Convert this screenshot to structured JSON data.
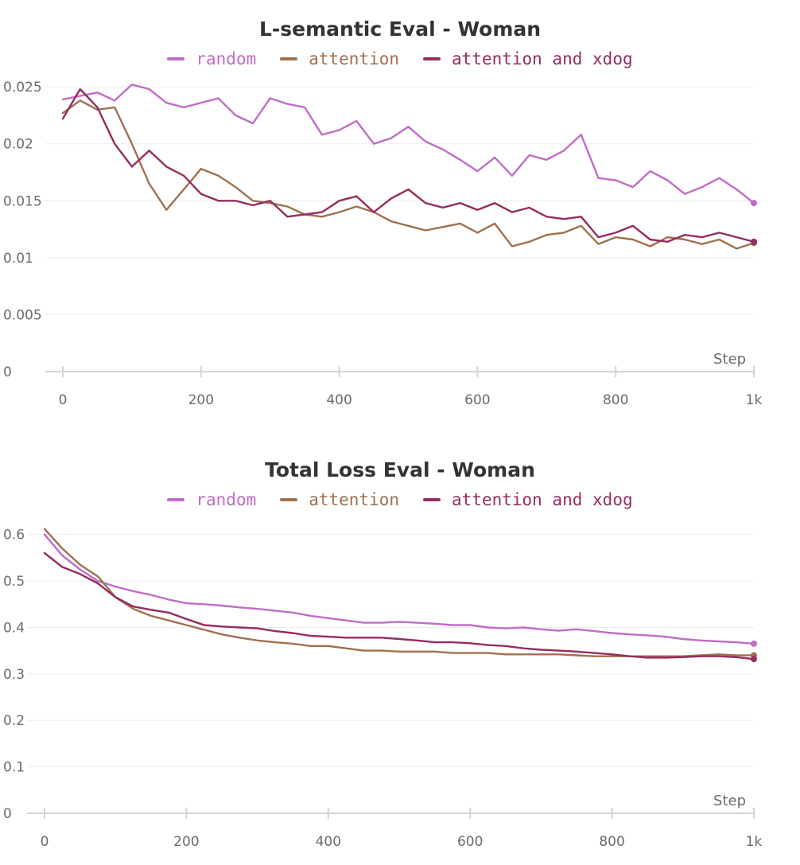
{
  "chart_data": [
    {
      "type": "line",
      "title": "L-semantic Eval - Woman",
      "xlabel": "Step",
      "ylabel": "",
      "xlim": [
        0,
        1000
      ],
      "ylim": [
        0,
        0.0255
      ],
      "grid": true,
      "legend_position": "top",
      "x_ticks": [
        0,
        200,
        400,
        600,
        800,
        1000
      ],
      "x_tick_labels": [
        "0",
        "200",
        "400",
        "600",
        "800",
        "1k"
      ],
      "y_ticks": [
        0,
        0.005,
        0.01,
        0.015,
        0.02,
        0.025
      ],
      "y_tick_labels": [
        "0",
        "0.005",
        "0.01",
        "0.015",
        "0.02",
        "0.025"
      ],
      "series": [
        {
          "name": "random",
          "color": "#c06cc7",
          "x": [
            0,
            25,
            50,
            75,
            100,
            125,
            150,
            175,
            200,
            225,
            250,
            275,
            300,
            325,
            350,
            375,
            400,
            425,
            450,
            475,
            500,
            525,
            550,
            575,
            600,
            625,
            650,
            675,
            700,
            725,
            750,
            775,
            800,
            825,
            850,
            875,
            900,
            925,
            950,
            975,
            1000
          ],
          "y": [
            0.0239,
            0.0242,
            0.0245,
            0.0238,
            0.0252,
            0.0248,
            0.0236,
            0.0232,
            0.0236,
            0.024,
            0.0225,
            0.0218,
            0.024,
            0.0235,
            0.0232,
            0.0208,
            0.0212,
            0.022,
            0.02,
            0.0205,
            0.0215,
            0.0202,
            0.0195,
            0.0186,
            0.0176,
            0.0188,
            0.0172,
            0.019,
            0.0186,
            0.0194,
            0.0208,
            0.017,
            0.0168,
            0.0162,
            0.0176,
            0.0168,
            0.0156,
            0.0162,
            0.017,
            0.016,
            0.0148
          ]
        },
        {
          "name": "attention",
          "color": "#a0714f",
          "x": [
            0,
            25,
            50,
            75,
            100,
            125,
            150,
            175,
            200,
            225,
            250,
            275,
            300,
            325,
            350,
            375,
            400,
            425,
            450,
            475,
            500,
            525,
            550,
            575,
            600,
            625,
            650,
            675,
            700,
            725,
            750,
            775,
            800,
            825,
            850,
            875,
            900,
            925,
            950,
            975,
            1000
          ],
          "y": [
            0.0227,
            0.0238,
            0.023,
            0.0232,
            0.02,
            0.0165,
            0.0142,
            0.016,
            0.0178,
            0.0172,
            0.0162,
            0.015,
            0.0148,
            0.0145,
            0.0138,
            0.0136,
            0.014,
            0.0145,
            0.014,
            0.0132,
            0.0128,
            0.0124,
            0.0127,
            0.013,
            0.0122,
            0.013,
            0.011,
            0.0114,
            0.012,
            0.0122,
            0.0128,
            0.0112,
            0.0118,
            0.0116,
            0.011,
            0.0118,
            0.0116,
            0.0112,
            0.0116,
            0.0108,
            0.0113
          ]
        },
        {
          "name": "attention and xdog",
          "color": "#962c5e",
          "x": [
            0,
            25,
            50,
            75,
            100,
            125,
            150,
            175,
            200,
            225,
            250,
            275,
            300,
            325,
            350,
            375,
            400,
            425,
            450,
            475,
            500,
            525,
            550,
            575,
            600,
            625,
            650,
            675,
            700,
            725,
            750,
            775,
            800,
            825,
            850,
            875,
            900,
            925,
            950,
            975,
            1000
          ],
          "y": [
            0.0222,
            0.0248,
            0.0232,
            0.02,
            0.018,
            0.0194,
            0.018,
            0.0172,
            0.0156,
            0.015,
            0.015,
            0.0146,
            0.015,
            0.0136,
            0.0138,
            0.014,
            0.015,
            0.0154,
            0.014,
            0.0152,
            0.016,
            0.0148,
            0.0144,
            0.0148,
            0.0142,
            0.0148,
            0.014,
            0.0144,
            0.0136,
            0.0134,
            0.0136,
            0.0118,
            0.0122,
            0.0128,
            0.0116,
            0.0114,
            0.012,
            0.0118,
            0.0122,
            0.0118,
            0.0114
          ]
        }
      ]
    },
    {
      "type": "line",
      "title": "Total Loss Eval - Woman",
      "xlabel": "Step",
      "ylabel": "",
      "xlim": [
        0,
        1000
      ],
      "ylim": [
        0,
        0.62
      ],
      "grid": true,
      "legend_position": "top",
      "x_ticks": [
        0,
        200,
        400,
        600,
        800,
        1000
      ],
      "x_tick_labels": [
        "0",
        "200",
        "400",
        "600",
        "800",
        "1k"
      ],
      "y_ticks": [
        0,
        0.1,
        0.2,
        0.3,
        0.4,
        0.5,
        0.6
      ],
      "y_tick_labels": [
        "0",
        "0.1",
        "0.2",
        "0.3",
        "0.4",
        "0.5",
        "0.6"
      ],
      "series": [
        {
          "name": "random",
          "color": "#c06cc7",
          "x": [
            0,
            25,
            50,
            75,
            100,
            125,
            150,
            175,
            200,
            225,
            250,
            275,
            300,
            325,
            350,
            375,
            400,
            425,
            450,
            475,
            500,
            525,
            550,
            575,
            600,
            625,
            650,
            675,
            700,
            725,
            750,
            775,
            800,
            825,
            850,
            875,
            900,
            925,
            950,
            975,
            1000
          ],
          "y": [
            0.6,
            0.555,
            0.525,
            0.5,
            0.488,
            0.478,
            0.47,
            0.46,
            0.452,
            0.45,
            0.447,
            0.443,
            0.44,
            0.436,
            0.432,
            0.425,
            0.42,
            0.415,
            0.41,
            0.41,
            0.412,
            0.41,
            0.408,
            0.405,
            0.405,
            0.4,
            0.398,
            0.4,
            0.396,
            0.393,
            0.396,
            0.392,
            0.388,
            0.385,
            0.383,
            0.38,
            0.375,
            0.372,
            0.37,
            0.368,
            0.365
          ]
        },
        {
          "name": "attention",
          "color": "#a0714f",
          "x": [
            0,
            25,
            50,
            75,
            100,
            125,
            150,
            175,
            200,
            225,
            250,
            275,
            300,
            325,
            350,
            375,
            400,
            425,
            450,
            475,
            500,
            525,
            550,
            575,
            600,
            625,
            650,
            675,
            700,
            725,
            750,
            775,
            800,
            825,
            850,
            875,
            900,
            925,
            950,
            975,
            1000
          ],
          "y": [
            0.612,
            0.57,
            0.535,
            0.51,
            0.465,
            0.44,
            0.425,
            0.415,
            0.405,
            0.395,
            0.385,
            0.378,
            0.372,
            0.368,
            0.365,
            0.36,
            0.36,
            0.355,
            0.35,
            0.35,
            0.348,
            0.348,
            0.348,
            0.345,
            0.345,
            0.345,
            0.342,
            0.342,
            0.342,
            0.342,
            0.34,
            0.338,
            0.338,
            0.338,
            0.338,
            0.338,
            0.338,
            0.34,
            0.342,
            0.34,
            0.34
          ]
        },
        {
          "name": "attention and xdog",
          "color": "#962c5e",
          "x": [
            0,
            25,
            50,
            75,
            100,
            125,
            150,
            175,
            200,
            225,
            250,
            275,
            300,
            325,
            350,
            375,
            400,
            425,
            450,
            475,
            500,
            525,
            550,
            575,
            600,
            625,
            650,
            675,
            700,
            725,
            750,
            775,
            800,
            825,
            850,
            875,
            900,
            925,
            950,
            975,
            1000
          ],
          "y": [
            0.56,
            0.53,
            0.515,
            0.495,
            0.465,
            0.445,
            0.438,
            0.432,
            0.418,
            0.405,
            0.402,
            0.4,
            0.398,
            0.392,
            0.388,
            0.382,
            0.38,
            0.378,
            0.378,
            0.378,
            0.375,
            0.372,
            0.368,
            0.368,
            0.366,
            0.362,
            0.36,
            0.355,
            0.352,
            0.35,
            0.348,
            0.345,
            0.342,
            0.338,
            0.335,
            0.335,
            0.336,
            0.338,
            0.338,
            0.336,
            0.332
          ]
        }
      ]
    }
  ]
}
